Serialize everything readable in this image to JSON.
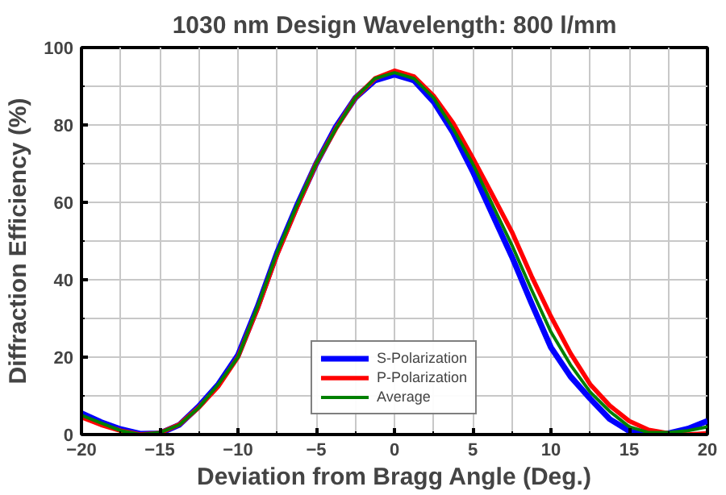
{
  "chart_data": {
    "type": "line",
    "title": "1030 nm Design Wavelength: 800 l/mm",
    "xlabel": "Deviation from Bragg Angle (Deg.)",
    "ylabel": "Diffraction Efficiency (%)",
    "x": [
      -20,
      -18.75,
      -17.5,
      -16.25,
      -15,
      -13.75,
      -12.5,
      -11.25,
      -10,
      -8.75,
      -7.5,
      -6.25,
      -5,
      -3.75,
      -2.5,
      -1.25,
      0,
      1.25,
      2.5,
      3.75,
      5,
      6.25,
      7.5,
      8.75,
      10,
      11.25,
      12.5,
      13.75,
      15,
      16.25,
      17.5,
      18.75,
      20
    ],
    "series": [
      {
        "name": "S-Polarization",
        "color": "#0000ff",
        "values": [
          5.5,
          3.2,
          1.4,
          0.2,
          0.3,
          2.5,
          7.3,
          13,
          20.5,
          33,
          47,
          59,
          70,
          79.5,
          87,
          91.5,
          93,
          91.5,
          86,
          78,
          68,
          57,
          46,
          34,
          22.5,
          15,
          9.3,
          4,
          0.9,
          0,
          0.3,
          1.5,
          3.5
        ]
      },
      {
        "name": "P-Polarization",
        "color": "#ff0000",
        "values": [
          4.5,
          2.5,
          1,
          0,
          0.4,
          2.6,
          7,
          12.5,
          20,
          32.5,
          46.5,
          58.5,
          70,
          79,
          87,
          92,
          94,
          92.5,
          87.5,
          80.5,
          71.5,
          62,
          52.4,
          41,
          30.5,
          21,
          13,
          7.5,
          3.5,
          1.2,
          0.3,
          0,
          0.3
        ]
      },
      {
        "name": "Average",
        "color": "#008000",
        "values": [
          5,
          3,
          1,
          0,
          0.5,
          2.5,
          7,
          13,
          20,
          33,
          47,
          59,
          70,
          79,
          87,
          92,
          93.5,
          92,
          87,
          79,
          70,
          59.5,
          49,
          37.5,
          26.5,
          18,
          11,
          6,
          2,
          0.5,
          0.5,
          1,
          2
        ]
      }
    ],
    "xlim": [
      -20,
      20
    ],
    "ylim": [
      0,
      100
    ],
    "xticks": [
      -20,
      -15,
      -10,
      -5,
      0,
      5,
      10,
      15,
      20
    ],
    "yticks": [
      0,
      20,
      40,
      60,
      80,
      100
    ],
    "grid": true,
    "legend": "bottom",
    "marker": "none",
    "line_style": "solid"
  }
}
